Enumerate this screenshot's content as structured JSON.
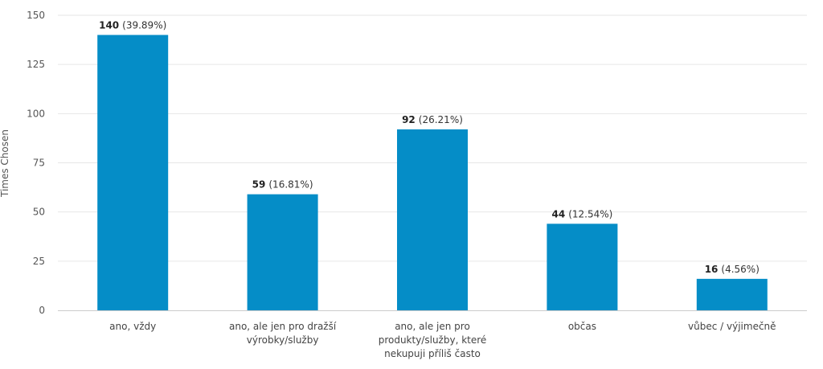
{
  "chart_data": {
    "type": "bar",
    "ylabel": "Times Chosen",
    "ylim": [
      0,
      150
    ],
    "yticks": [
      0,
      25,
      50,
      75,
      100,
      125,
      150
    ],
    "grid": true,
    "bar_color": "#058DC7",
    "categories": [
      [
        "ano, vždy"
      ],
      [
        "ano, ale jen pro dražší",
        "výrobky/služby"
      ],
      [
        "ano, ale jen pro",
        "produkty/služby, které",
        "nekupuji příliš často"
      ],
      [
        "občas"
      ],
      [
        "vůbec / výjimečně"
      ]
    ],
    "values": [
      140,
      59,
      92,
      44,
      16
    ],
    "percent_labels": [
      "(39.89%)",
      "(16.81%)",
      "(26.21%)",
      "(12.54%)",
      "(4.56%)"
    ]
  }
}
